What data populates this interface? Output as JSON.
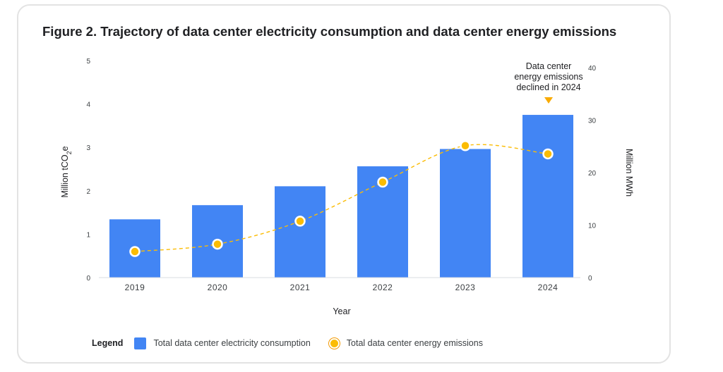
{
  "title": "Figure 2. Trajectory of data center electricity consumption and data center energy emissions",
  "legend": {
    "title": "Legend",
    "items": [
      "Total data center electricity consumption",
      "Total data center energy emissions"
    ]
  },
  "colors": {
    "bar": "#4285f4",
    "line": "#fbbc04",
    "marker_edge": "#ffffff"
  },
  "chart_data": {
    "type": "bar",
    "categories": [
      "2019",
      "2020",
      "2021",
      "2022",
      "2023",
      "2024"
    ],
    "series": [
      {
        "name": "Total data center electricity consumption",
        "type": "bar",
        "axis": "right",
        "values": [
          11.1,
          13.8,
          17.4,
          21.2,
          24.5,
          31.0
        ]
      },
      {
        "name": "Total data center energy emissions",
        "type": "line",
        "axis": "left",
        "values": [
          0.6,
          0.77,
          1.3,
          2.2,
          3.04,
          2.85
        ]
      }
    ],
    "xlabel": "Year",
    "ylabel_left": {
      "main": "Million tCO",
      "sub": "2",
      "suffix": "e"
    },
    "ylabel_right": "Million MWh",
    "ylim_left": [
      0,
      5
    ],
    "ylim_right": [
      0,
      40
    ],
    "yticks_left": [
      "0",
      "1",
      "2",
      "3",
      "4",
      "5"
    ],
    "yticks_right": [
      "0",
      "10",
      "20",
      "30",
      "40"
    ],
    "annotation": {
      "lines": [
        "Data center",
        "energy emissions",
        "declined in 2024"
      ],
      "category": "2024"
    },
    "grid": false,
    "legend_position": "bottom-left"
  }
}
